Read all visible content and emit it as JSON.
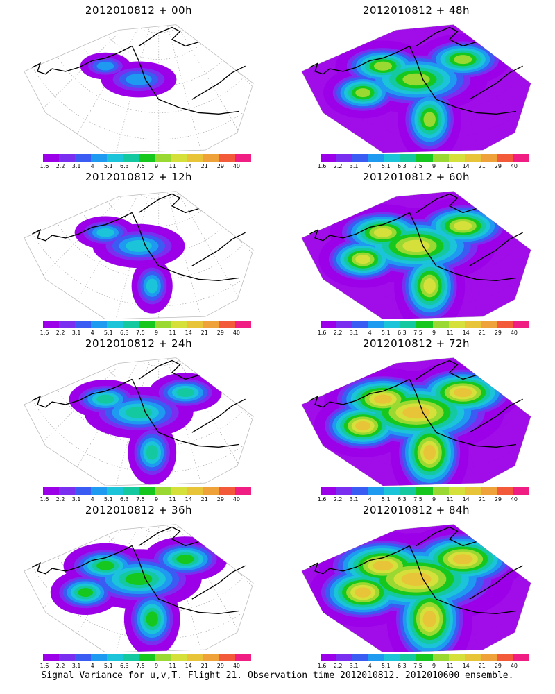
{
  "figure": {
    "caption": "Signal Variance for u,v,T. Flight 21. Observation time 2012010812. 2012010600 ensemble."
  },
  "colorbar": {
    "labels": [
      "1.6",
      "2.2",
      "3.1",
      "4",
      "5.1",
      "6.3",
      "7.5",
      "9",
      "11",
      "14",
      "21",
      "29",
      "40"
    ],
    "colors": [
      "#9b00e8",
      "#7a2ef0",
      "#3a5cf2",
      "#1e9bf0",
      "#1bc4d8",
      "#14c8a0",
      "#16c81e",
      "#9ad832",
      "#d6e03a",
      "#e8c438",
      "#f0a23a",
      "#f25a3a",
      "#f01e82"
    ]
  },
  "panels": [
    {
      "title": "2012010812 + 00h",
      "intensity": 0
    },
    {
      "title": "2012010812 + 48h",
      "intensity": 4
    },
    {
      "title": "2012010812 + 12h",
      "intensity": 1
    },
    {
      "title": "2012010812 + 60h",
      "intensity": 5
    },
    {
      "title": "2012010812 + 24h",
      "intensity": 2
    },
    {
      "title": "2012010812 + 72h",
      "intensity": 6
    },
    {
      "title": "2012010812 + 36h",
      "intensity": 3
    },
    {
      "title": "2012010812 + 84h",
      "intensity": 7
    }
  ]
}
